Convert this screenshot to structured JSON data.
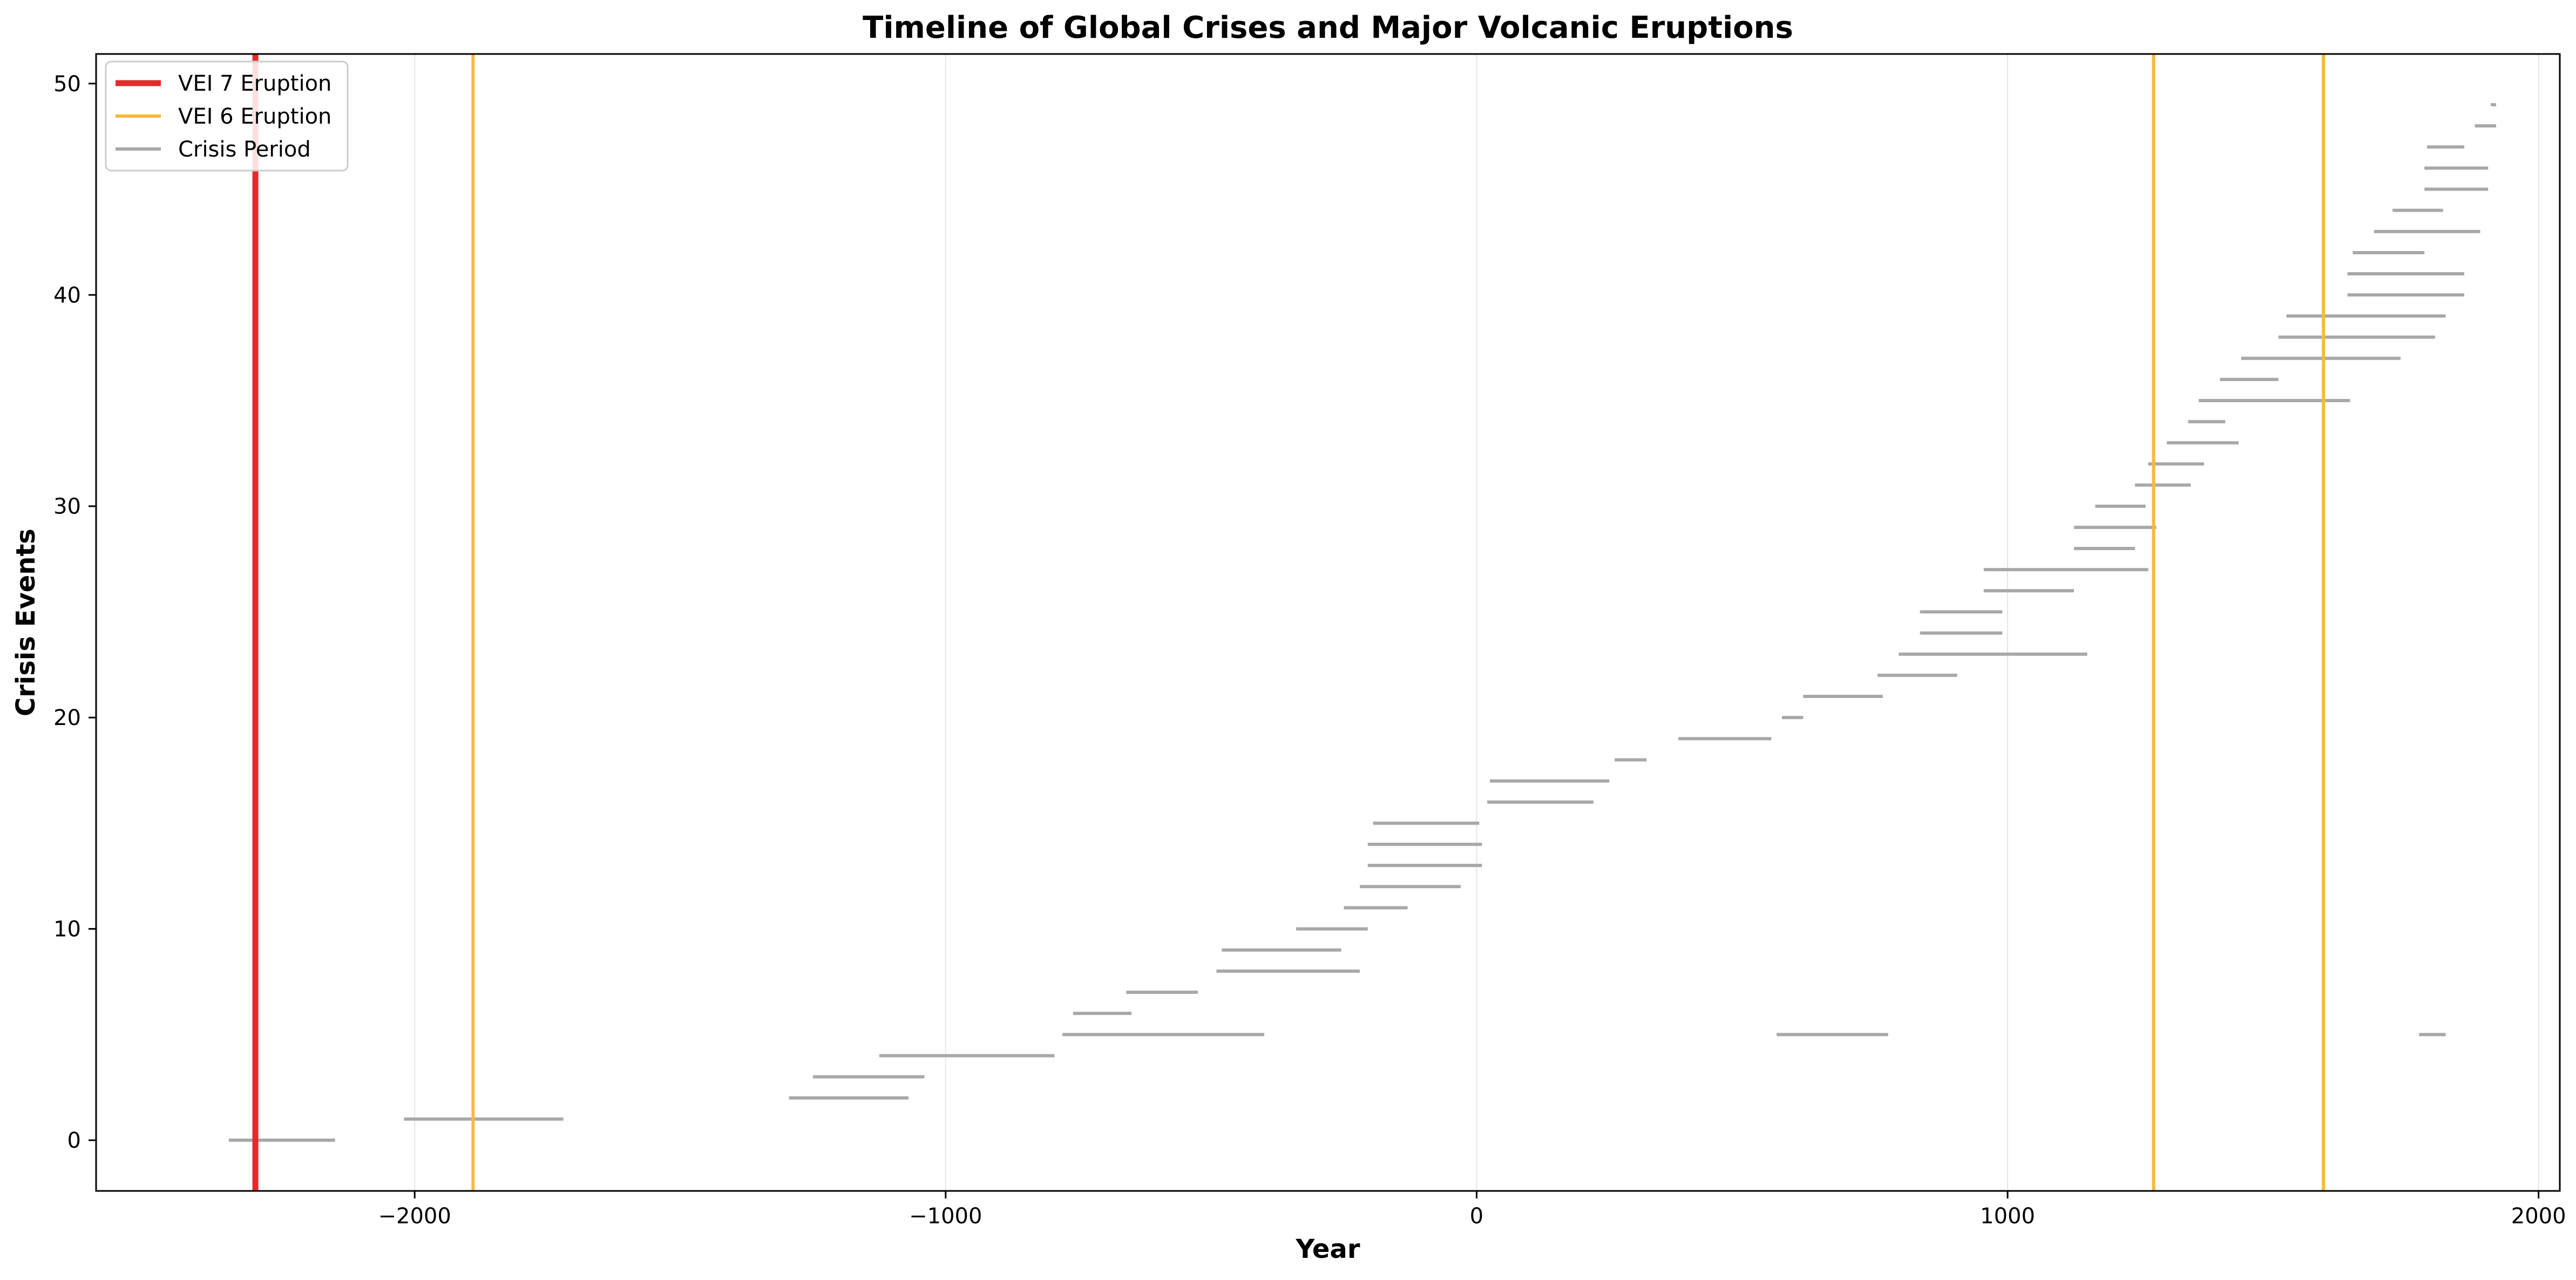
{
  "chart_data": {
    "type": "line",
    "title": "Timeline of Global Crises and Major Volcanic Eruptions",
    "xlabel": "Year",
    "ylabel": "Crisis Events",
    "xlim": [
      -2600,
      2040
    ],
    "ylim": [
      -2.4,
      51.4
    ],
    "xticks": [
      -2000,
      -1000,
      0,
      1000,
      2000
    ],
    "xtick_labels": [
      "−2000",
      "−1000",
      "0",
      "1000",
      "2000"
    ],
    "yticks": [
      0,
      10,
      20,
      30,
      40,
      50
    ],
    "ytick_labels": [
      "0",
      "10",
      "20",
      "30",
      "40",
      "50"
    ],
    "grid": "x-axis vertical lines",
    "legend_position": "top-left",
    "colors": {
      "vei7": "#e8282b",
      "vei6": "#f8b93a",
      "crisis": "#a8a8a8"
    },
    "legend": [
      {
        "label": "VEI 7 Eruption",
        "series": "vei7"
      },
      {
        "label": "VEI 6 Eruption",
        "series": "vei6"
      },
      {
        "label": "Crisis Period",
        "series": "crisis"
      }
    ],
    "eruptions": [
      {
        "type": "vei7",
        "year": -2300
      },
      {
        "type": "vei6",
        "year": -1890
      },
      {
        "type": "vei6",
        "year": 1275
      },
      {
        "type": "vei6",
        "year": 1595
      }
    ],
    "crises": [
      {
        "y": 0,
        "start": -2350,
        "end": -2150
      },
      {
        "y": 1,
        "start": -2020,
        "end": -1720
      },
      {
        "y": 2,
        "start": -1295,
        "end": -1070
      },
      {
        "y": 3,
        "start": -1250,
        "end": -1040
      },
      {
        "y": 4,
        "start": -1125,
        "end": -795
      },
      {
        "y": 5,
        "start": -780,
        "end": -400
      },
      {
        "y": 5,
        "start": 565,
        "end": 775
      },
      {
        "y": 5,
        "start": 1775,
        "end": 1825
      },
      {
        "y": 6,
        "start": -760,
        "end": -650
      },
      {
        "y": 7,
        "start": -660,
        "end": -525
      },
      {
        "y": 8,
        "start": -490,
        "end": -220
      },
      {
        "y": 9,
        "start": -480,
        "end": -255
      },
      {
        "y": 10,
        "start": -340,
        "end": -205
      },
      {
        "y": 11,
        "start": -250,
        "end": -130
      },
      {
        "y": 12,
        "start": -220,
        "end": -30
      },
      {
        "y": 13,
        "start": -205,
        "end": 10
      },
      {
        "y": 14,
        "start": -205,
        "end": 10
      },
      {
        "y": 15,
        "start": -195,
        "end": 5
      },
      {
        "y": 16,
        "start": 20,
        "end": 220
      },
      {
        "y": 17,
        "start": 25,
        "end": 250
      },
      {
        "y": 18,
        "start": 260,
        "end": 320
      },
      {
        "y": 19,
        "start": 380,
        "end": 555
      },
      {
        "y": 20,
        "start": 575,
        "end": 615
      },
      {
        "y": 21,
        "start": 615,
        "end": 765
      },
      {
        "y": 22,
        "start": 755,
        "end": 905
      },
      {
        "y": 23,
        "start": 795,
        "end": 1150
      },
      {
        "y": 24,
        "start": 835,
        "end": 990
      },
      {
        "y": 25,
        "start": 835,
        "end": 990
      },
      {
        "y": 26,
        "start": 955,
        "end": 1125
      },
      {
        "y": 27,
        "start": 955,
        "end": 1265
      },
      {
        "y": 28,
        "start": 1125,
        "end": 1240
      },
      {
        "y": 29,
        "start": 1125,
        "end": 1280
      },
      {
        "y": 30,
        "start": 1165,
        "end": 1260
      },
      {
        "y": 31,
        "start": 1240,
        "end": 1345
      },
      {
        "y": 32,
        "start": 1265,
        "end": 1370
      },
      {
        "y": 33,
        "start": 1300,
        "end": 1435
      },
      {
        "y": 34,
        "start": 1340,
        "end": 1410
      },
      {
        "y": 35,
        "start": 1360,
        "end": 1645
      },
      {
        "y": 36,
        "start": 1400,
        "end": 1510
      },
      {
        "y": 37,
        "start": 1440,
        "end": 1740
      },
      {
        "y": 38,
        "start": 1510,
        "end": 1805
      },
      {
        "y": 39,
        "start": 1525,
        "end": 1825
      },
      {
        "y": 40,
        "start": 1640,
        "end": 1860
      },
      {
        "y": 41,
        "start": 1640,
        "end": 1860
      },
      {
        "y": 42,
        "start": 1650,
        "end": 1785
      },
      {
        "y": 43,
        "start": 1690,
        "end": 1890
      },
      {
        "y": 44,
        "start": 1725,
        "end": 1820
      },
      {
        "y": 45,
        "start": 1785,
        "end": 1905
      },
      {
        "y": 46,
        "start": 1785,
        "end": 1905
      },
      {
        "y": 47,
        "start": 1790,
        "end": 1860
      },
      {
        "y": 48,
        "start": 1880,
        "end": 1920
      },
      {
        "y": 49,
        "start": 1910,
        "end": 1920
      }
    ]
  }
}
